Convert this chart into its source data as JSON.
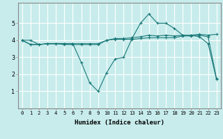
{
  "xlabel": "Humidex (Indice chaleur)",
  "ylabel": "",
  "background_color": "#c8ecec",
  "grid_color": "#ffffff",
  "line_color": "#1a7878",
  "xlim": [
    -0.5,
    23.5
  ],
  "ylim": [
    0,
    6.2
  ],
  "xticks": [
    0,
    1,
    2,
    3,
    4,
    5,
    6,
    7,
    8,
    9,
    10,
    11,
    12,
    13,
    14,
    15,
    16,
    17,
    18,
    19,
    20,
    21,
    22,
    23
  ],
  "yticks": [
    1,
    2,
    3,
    4,
    5
  ],
  "series": [
    {
      "x": [
        0,
        1,
        2,
        3,
        4,
        5,
        6,
        7,
        8,
        9,
        10,
        11,
        12,
        13,
        14,
        15,
        16,
        17,
        18,
        19,
        20,
        21,
        22,
        23
      ],
      "y": [
        4.0,
        4.0,
        3.75,
        3.8,
        3.8,
        3.8,
        3.8,
        2.7,
        1.5,
        1.0,
        2.1,
        2.9,
        3.0,
        4.1,
        5.0,
        5.55,
        5.0,
        5.0,
        4.7,
        4.3,
        4.3,
        4.2,
        3.8,
        1.7
      ]
    },
    {
      "x": [
        0,
        1,
        2,
        3,
        4,
        5,
        6,
        7,
        8,
        9,
        10,
        11,
        12,
        13,
        14,
        15,
        16,
        17,
        18,
        19,
        20,
        21,
        22,
        23
      ],
      "y": [
        4.0,
        3.75,
        3.75,
        3.8,
        3.8,
        3.8,
        3.8,
        3.8,
        3.8,
        3.8,
        4.0,
        4.1,
        4.1,
        4.15,
        4.2,
        4.3,
        4.25,
        4.3,
        4.25,
        4.3,
        4.3,
        4.35,
        4.3,
        4.35
      ]
    },
    {
      "x": [
        0,
        1,
        2,
        3,
        4,
        5,
        6,
        7,
        8,
        9,
        10,
        11,
        12,
        13,
        14,
        15,
        16,
        17,
        18,
        19,
        20,
        21,
        22,
        23
      ],
      "y": [
        4.0,
        3.75,
        3.75,
        3.8,
        3.8,
        3.75,
        3.75,
        3.75,
        3.75,
        3.75,
        4.0,
        4.05,
        4.05,
        4.05,
        4.1,
        4.15,
        4.15,
        4.15,
        4.15,
        4.25,
        4.25,
        4.3,
        4.2,
        1.75
      ]
    }
  ],
  "xlabel_fontsize": 6.5,
  "tick_fontsize_x": 5.2,
  "tick_fontsize_y": 6.0
}
